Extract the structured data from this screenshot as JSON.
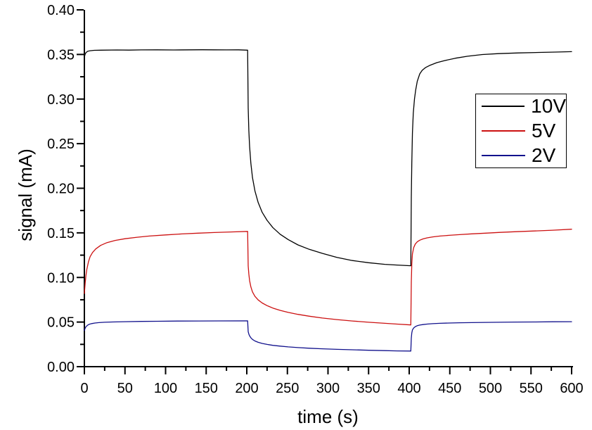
{
  "chart_data": {
    "type": "line",
    "title": "",
    "xlabel": "time (s)",
    "ylabel": "signal (mA)",
    "xlim": [
      0,
      600
    ],
    "ylim": [
      0.0,
      0.4
    ],
    "grid": false,
    "x_major_ticks": [
      0,
      50,
      100,
      150,
      200,
      250,
      300,
      350,
      400,
      450,
      500,
      550,
      600
    ],
    "x_tick_labels": [
      "0",
      "50",
      "100",
      "150",
      "200",
      "250",
      "300",
      "350",
      "400",
      "450",
      "500",
      "550",
      "600"
    ],
    "x_minor_ticks": [
      25,
      75,
      125,
      175,
      225,
      275,
      325,
      375,
      425,
      475,
      525,
      575
    ],
    "y_major_ticks": [
      0.0,
      0.05,
      0.1,
      0.15,
      0.2,
      0.25,
      0.3,
      0.35,
      0.4
    ],
    "y_tick_labels": [
      "0.00",
      "0.05",
      "0.10",
      "0.15",
      "0.20",
      "0.25",
      "0.30",
      "0.35",
      "0.40"
    ],
    "y_minor_ticks": [
      0.025,
      0.075,
      0.125,
      0.175,
      0.225,
      0.275,
      0.325,
      0.375
    ],
    "legend": {
      "position": "upper-right",
      "entries": [
        {
          "label": "10V",
          "color": "#000000"
        },
        {
          "label": "5V",
          "color": "#cc1111"
        },
        {
          "label": "2V",
          "color": "#11118c"
        }
      ]
    },
    "series": [
      {
        "name": "10V",
        "color": "#000000",
        "points": [
          [
            0,
            0.347
          ],
          [
            1,
            0.3505
          ],
          [
            2,
            0.352
          ],
          [
            4,
            0.3535
          ],
          [
            7,
            0.3542
          ],
          [
            12,
            0.3546
          ],
          [
            20,
            0.3548
          ],
          [
            40,
            0.355
          ],
          [
            55,
            0.3549
          ],
          [
            70,
            0.3551
          ],
          [
            90,
            0.3552
          ],
          [
            110,
            0.355
          ],
          [
            130,
            0.3552
          ],
          [
            145,
            0.3553
          ],
          [
            160,
            0.3552
          ],
          [
            175,
            0.3551
          ],
          [
            190,
            0.3552
          ],
          [
            201,
            0.3548
          ],
          [
            201.7,
            0.29
          ],
          [
            202.5,
            0.265
          ],
          [
            203.5,
            0.247
          ],
          [
            205,
            0.228
          ],
          [
            207,
            0.212
          ],
          [
            210,
            0.197
          ],
          [
            214,
            0.184
          ],
          [
            219,
            0.173
          ],
          [
            225,
            0.164
          ],
          [
            232,
            0.156
          ],
          [
            241,
            0.1485
          ],
          [
            251,
            0.1425
          ],
          [
            263,
            0.1365
          ],
          [
            277,
            0.1315
          ],
          [
            293,
            0.127
          ],
          [
            311,
            0.1225
          ],
          [
            330,
            0.119
          ],
          [
            350,
            0.1165
          ],
          [
            370,
            0.1147
          ],
          [
            385,
            0.1139
          ],
          [
            402,
            0.1131
          ],
          [
            402.6,
            0.19
          ],
          [
            403.2,
            0.228
          ],
          [
            404,
            0.262
          ],
          [
            405,
            0.284
          ],
          [
            406.5,
            0.3
          ],
          [
            408,
            0.31
          ],
          [
            410,
            0.32
          ],
          [
            413,
            0.3282
          ],
          [
            416,
            0.3322
          ],
          [
            420,
            0.3352
          ],
          [
            426,
            0.338
          ],
          [
            434,
            0.3408
          ],
          [
            444,
            0.3432
          ],
          [
            457,
            0.3458
          ],
          [
            472,
            0.348
          ],
          [
            490,
            0.3499
          ],
          [
            510,
            0.3509
          ],
          [
            535,
            0.3517
          ],
          [
            560,
            0.3523
          ],
          [
            580,
            0.3527
          ],
          [
            600,
            0.3531
          ]
        ]
      },
      {
        "name": "5V",
        "color": "#cc1111",
        "points": [
          [
            0,
            0.082
          ],
          [
            1,
            0.094
          ],
          [
            2,
            0.1025
          ],
          [
            3,
            0.109
          ],
          [
            5,
            0.1175
          ],
          [
            7,
            0.1232
          ],
          [
            10,
            0.128
          ],
          [
            14,
            0.132
          ],
          [
            20,
            0.1359
          ],
          [
            28,
            0.1391
          ],
          [
            38,
            0.1415
          ],
          [
            50,
            0.1434
          ],
          [
            65,
            0.1451
          ],
          [
            80,
            0.1464
          ],
          [
            100,
            0.1477
          ],
          [
            120,
            0.1488
          ],
          [
            140,
            0.1497
          ],
          [
            160,
            0.1504
          ],
          [
            180,
            0.151
          ],
          [
            201,
            0.1516
          ],
          [
            201.7,
            0.113
          ],
          [
            202.5,
            0.104
          ],
          [
            203.5,
            0.0965
          ],
          [
            205,
            0.0895
          ],
          [
            207,
            0.0838
          ],
          [
            210,
            0.0788
          ],
          [
            214,
            0.0748
          ],
          [
            219,
            0.0714
          ],
          [
            225,
            0.0684
          ],
          [
            232,
            0.0657
          ],
          [
            241,
            0.0631
          ],
          [
            251,
            0.0608
          ],
          [
            263,
            0.0586
          ],
          [
            277,
            0.0566
          ],
          [
            293,
            0.0545
          ],
          [
            311,
            0.0528
          ],
          [
            330,
            0.0512
          ],
          [
            350,
            0.0498
          ],
          [
            370,
            0.0486
          ],
          [
            385,
            0.0477
          ],
          [
            402,
            0.0468
          ],
          [
            402.6,
            0.095
          ],
          [
            403.2,
            0.115
          ],
          [
            404,
            0.1265
          ],
          [
            405.5,
            0.1335
          ],
          [
            407.5,
            0.1375
          ],
          [
            410,
            0.14
          ],
          [
            413,
            0.1418
          ],
          [
            417,
            0.1432
          ],
          [
            422,
            0.1444
          ],
          [
            429,
            0.1455
          ],
          [
            438,
            0.1464
          ],
          [
            449,
            0.1472
          ],
          [
            462,
            0.148
          ],
          [
            477,
            0.1489
          ],
          [
            494,
            0.1497
          ],
          [
            512,
            0.1505
          ],
          [
            532,
            0.1513
          ],
          [
            554,
            0.1521
          ],
          [
            577,
            0.153
          ],
          [
            600,
            0.1541
          ]
        ]
      },
      {
        "name": "2V",
        "color": "#11118c",
        "points": [
          [
            0,
            0.0405
          ],
          [
            1,
            0.0432
          ],
          [
            2,
            0.0448
          ],
          [
            4,
            0.0465
          ],
          [
            6,
            0.0475
          ],
          [
            9,
            0.0483
          ],
          [
            13,
            0.0489
          ],
          [
            18,
            0.0494
          ],
          [
            25,
            0.0498
          ],
          [
            35,
            0.0501
          ],
          [
            50,
            0.0504
          ],
          [
            70,
            0.0507
          ],
          [
            90,
            0.0509
          ],
          [
            115,
            0.0511
          ],
          [
            140,
            0.0512
          ],
          [
            165,
            0.0513
          ],
          [
            201,
            0.0514
          ],
          [
            201.7,
            0.0392
          ],
          [
            202.5,
            0.0366
          ],
          [
            203.5,
            0.0345
          ],
          [
            205,
            0.0324
          ],
          [
            207,
            0.0305
          ],
          [
            210,
            0.0288
          ],
          [
            214,
            0.0273
          ],
          [
            219,
            0.026
          ],
          [
            225,
            0.0249
          ],
          [
            232,
            0.0239
          ],
          [
            241,
            0.023
          ],
          [
            251,
            0.0222
          ],
          [
            263,
            0.0214
          ],
          [
            277,
            0.0207
          ],
          [
            293,
            0.02
          ],
          [
            311,
            0.0194
          ],
          [
            330,
            0.0189
          ],
          [
            350,
            0.0184
          ],
          [
            370,
            0.018
          ],
          [
            385,
            0.0177
          ],
          [
            402,
            0.0175
          ],
          [
            402.6,
            0.032
          ],
          [
            403.2,
            0.0378
          ],
          [
            404,
            0.0412
          ],
          [
            405.5,
            0.0434
          ],
          [
            407.5,
            0.0449
          ],
          [
            410,
            0.0459
          ],
          [
            413,
            0.0466
          ],
          [
            417,
            0.0472
          ],
          [
            422,
            0.0477
          ],
          [
            429,
            0.0482
          ],
          [
            438,
            0.0486
          ],
          [
            449,
            0.0489
          ],
          [
            462,
            0.0492
          ],
          [
            477,
            0.0494
          ],
          [
            494,
            0.0496
          ],
          [
            512,
            0.0498
          ],
          [
            532,
            0.05
          ],
          [
            554,
            0.0501
          ],
          [
            577,
            0.0503
          ],
          [
            600,
            0.0504
          ]
        ]
      }
    ]
  }
}
